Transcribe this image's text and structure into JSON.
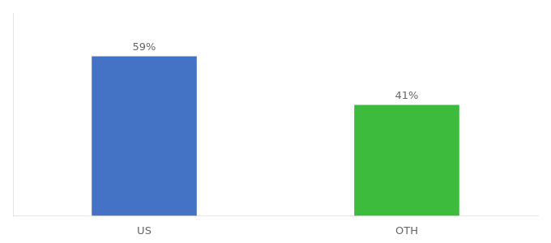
{
  "chart_data": {
    "type": "bar",
    "categories": [
      "US",
      "OTH"
    ],
    "values": [
      59,
      41
    ],
    "value_labels": [
      "59%",
      "41%"
    ],
    "data_labels": true,
    "colors": [
      "#4472c4",
      "#3dbb3d"
    ],
    "ylim": [
      0,
      75
    ],
    "tick_labels": "x",
    "grid": false
  }
}
